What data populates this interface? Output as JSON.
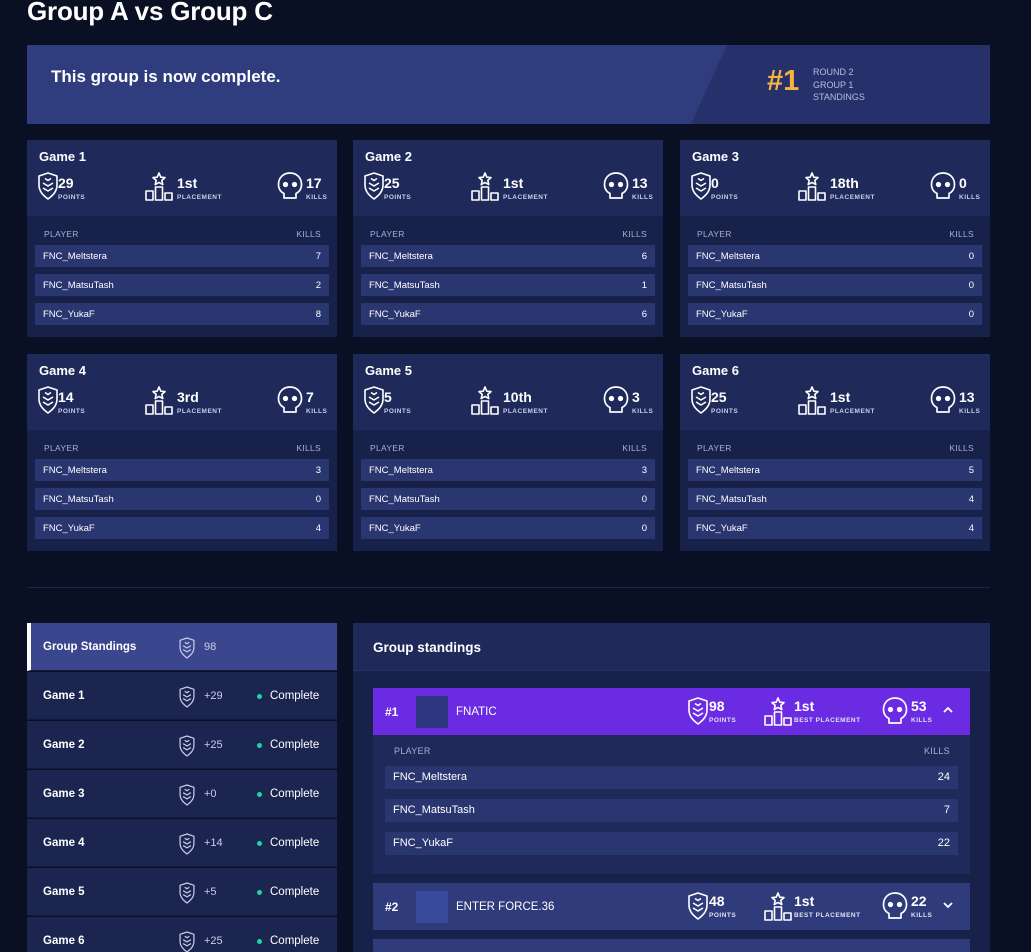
{
  "page_title": "Group A vs Group C",
  "banner": {
    "message": "This group is now complete.",
    "rank": "#1",
    "meta": [
      "ROUND 2",
      "GROUP 1",
      "STANDINGS"
    ]
  },
  "game_cards": {
    "labels": {
      "points": "POINTS",
      "placement": "PLACEMENT",
      "kills": "KILLS",
      "player_col": "PLAYER",
      "kills_col": "KILLS"
    },
    "games": [
      {
        "title": "Game 1",
        "points": "29",
        "placement": "1st",
        "kills": "17",
        "players": [
          {
            "name": "FNC_Meltstera",
            "kills": "7"
          },
          {
            "name": "FNC_MatsuTash",
            "kills": "2"
          },
          {
            "name": "FNC_YukaF",
            "kills": "8"
          }
        ]
      },
      {
        "title": "Game 2",
        "points": "25",
        "placement": "1st",
        "kills": "13",
        "players": [
          {
            "name": "FNC_Meltstera",
            "kills": "6"
          },
          {
            "name": "FNC_MatsuTash",
            "kills": "1"
          },
          {
            "name": "FNC_YukaF",
            "kills": "6"
          }
        ]
      },
      {
        "title": "Game 3",
        "points": "0",
        "placement": "18th",
        "kills": "0",
        "players": [
          {
            "name": "FNC_Meltstera",
            "kills": "0"
          },
          {
            "name": "FNC_MatsuTash",
            "kills": "0"
          },
          {
            "name": "FNC_YukaF",
            "kills": "0"
          }
        ]
      },
      {
        "title": "Game 4",
        "points": "14",
        "placement": "3rd",
        "kills": "7",
        "players": [
          {
            "name": "FNC_Meltstera",
            "kills": "3"
          },
          {
            "name": "FNC_MatsuTash",
            "kills": "0"
          },
          {
            "name": "FNC_YukaF",
            "kills": "4"
          }
        ]
      },
      {
        "title": "Game 5",
        "points": "5",
        "placement": "10th",
        "kills": "3",
        "players": [
          {
            "name": "FNC_Meltstera",
            "kills": "3"
          },
          {
            "name": "FNC_MatsuTash",
            "kills": "0"
          },
          {
            "name": "FNC_YukaF",
            "kills": "0"
          }
        ]
      },
      {
        "title": "Game 6",
        "points": "25",
        "placement": "1st",
        "kills": "13",
        "players": [
          {
            "name": "FNC_Meltstera",
            "kills": "5"
          },
          {
            "name": "FNC_MatsuTash",
            "kills": "4"
          },
          {
            "name": "FNC_YukaF",
            "kills": "4"
          }
        ]
      }
    ]
  },
  "sidebar": {
    "items": [
      {
        "label": "Group Standings",
        "value": "98",
        "status": ""
      },
      {
        "label": "Game 1",
        "value": "+29",
        "status": "Complete"
      },
      {
        "label": "Game 2",
        "value": "+25",
        "status": "Complete"
      },
      {
        "label": "Game 3",
        "value": "+0",
        "status": "Complete"
      },
      {
        "label": "Game 4",
        "value": "+14",
        "status": "Complete"
      },
      {
        "label": "Game 5",
        "value": "+5",
        "status": "Complete"
      },
      {
        "label": "Game 6",
        "value": "+25",
        "status": "Complete"
      }
    ]
  },
  "standings": {
    "title": "Group standings",
    "labels": {
      "points": "POINTS",
      "best_placement": "BEST PLACEMENT",
      "kills": "KILLS",
      "player_col": "PLAYER",
      "kills_col": "KILLS"
    },
    "teams": [
      {
        "rank": "#1",
        "name": "FNATIC",
        "points": "98",
        "best_placement": "1st",
        "kills": "53",
        "expanded": true,
        "players": [
          {
            "name": "FNC_Meltstera",
            "kills": "24"
          },
          {
            "name": "FNC_MatsuTash",
            "kills": "7"
          },
          {
            "name": "FNC_YukaF",
            "kills": "22"
          }
        ]
      },
      {
        "rank": "#2",
        "name": "ENTER FORCE.36",
        "points": "48",
        "best_placement": "1st",
        "kills": "22",
        "expanded": false
      }
    ]
  },
  "colors": {
    "background": "#0a1024",
    "card": "#17214a",
    "accent_gold": "#f5b342",
    "accent_purple": "#6a2be3",
    "status_green": "#22d3a0"
  },
  "icons": {
    "points": "points-shield-icon",
    "placement": "podium-star-icon",
    "kills": "skull-icon",
    "chevron_up": "chevron-up-icon",
    "chevron_down": "chevron-down-icon"
  }
}
